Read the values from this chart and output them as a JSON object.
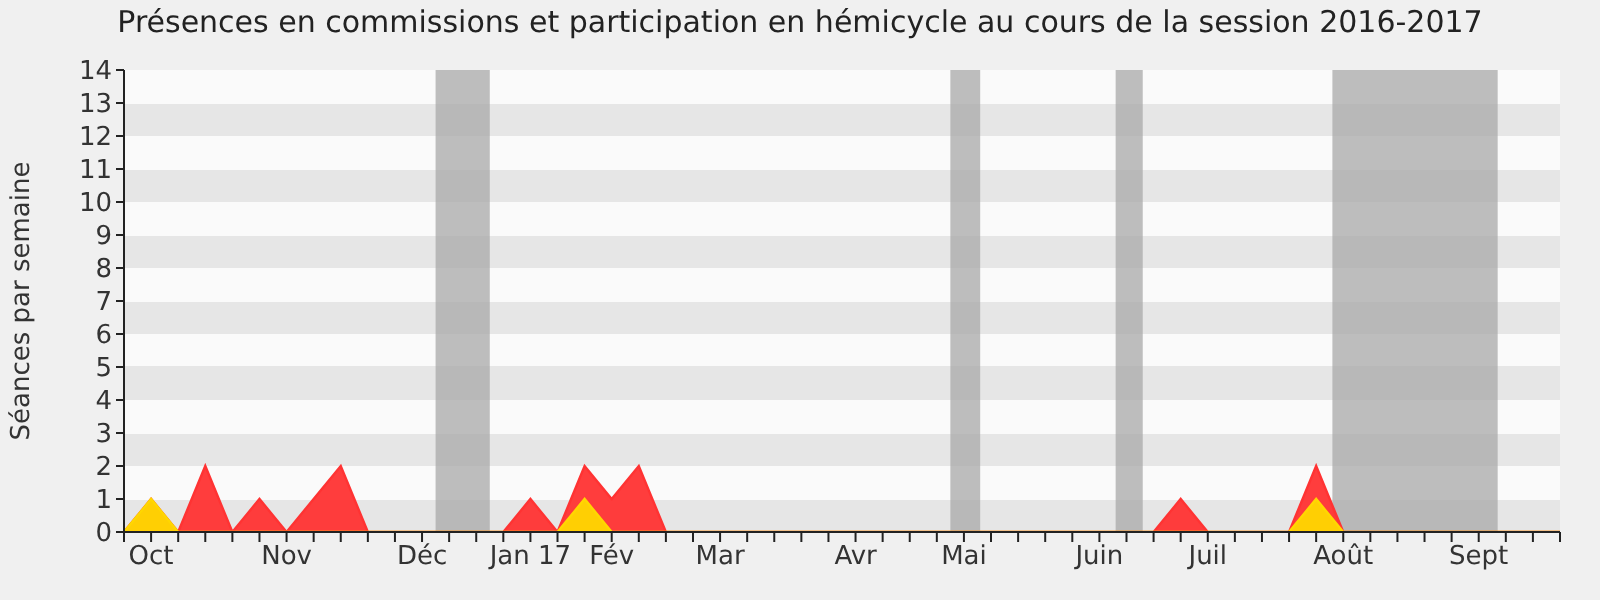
{
  "chart_data": {
    "type": "area",
    "title": "Présences en commissions et participation en hémicycle au cours de la session 2016-2017",
    "ylabel": "Séances par semaine",
    "categories": [
      null,
      "Oct",
      null,
      null,
      null,
      null,
      "Nov",
      null,
      null,
      null,
      null,
      "Déc",
      null,
      null,
      null,
      "Jan 17",
      null,
      null,
      "Fév",
      null,
      null,
      null,
      "Mar",
      null,
      null,
      null,
      null,
      "Avr",
      null,
      null,
      null,
      "Mai",
      null,
      null,
      null,
      null,
      "Juin",
      null,
      null,
      null,
      "Juil",
      null,
      null,
      null,
      null,
      "Août",
      null,
      null,
      null,
      null,
      "Sept",
      null,
      null,
      null
    ],
    "series": [
      {
        "color": "#ff3333",
        "values": [
          0,
          1,
          0,
          2,
          0,
          1,
          0,
          1,
          2,
          0,
          0,
          0,
          0,
          0,
          0,
          1,
          0,
          2,
          1,
          2,
          0,
          0,
          0,
          0,
          0,
          0,
          0,
          0,
          0,
          0,
          0,
          0,
          0,
          0,
          0,
          0,
          0,
          0,
          0,
          1,
          0,
          0,
          0,
          0,
          2,
          0,
          0,
          0,
          0,
          0,
          0,
          0,
          0,
          0
        ]
      },
      {
        "color": "#ffd700",
        "values": [
          0,
          1,
          0,
          0,
          0,
          0,
          0,
          0,
          0,
          0,
          0,
          0,
          0,
          0,
          0,
          0,
          0,
          1,
          0,
          0,
          0,
          0,
          0,
          0,
          0,
          0,
          0,
          0,
          0,
          0,
          0,
          0,
          0,
          0,
          0,
          0,
          0,
          0,
          0,
          0,
          0,
          0,
          0,
          0,
          1,
          0,
          0,
          0,
          0,
          0,
          0,
          0,
          0,
          0
        ]
      }
    ],
    "ylim": [
      0,
      14
    ],
    "yticks": [
      0,
      1,
      2,
      3,
      4,
      5,
      6,
      7,
      8,
      9,
      10,
      11,
      12,
      13,
      14
    ],
    "grid": false
  }
}
